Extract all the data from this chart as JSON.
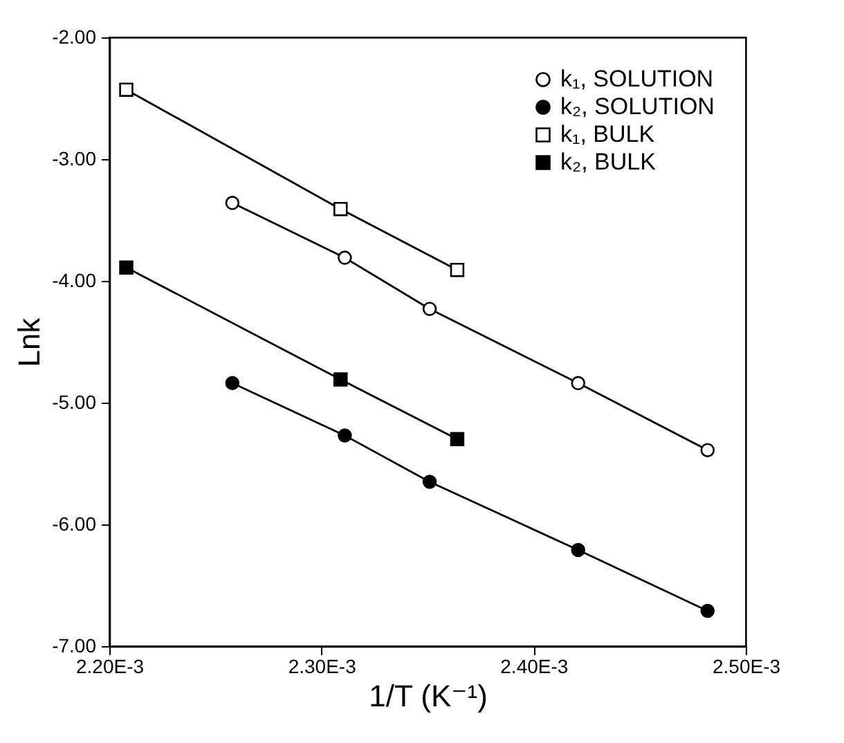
{
  "chart_data": {
    "type": "line",
    "xlabel": "1/T (K⁻¹)",
    "ylabel": "Lnk",
    "xlim": [
      0.0022,
      0.0025
    ],
    "ylim": [
      -7,
      -2
    ],
    "xticks": [
      {
        "value": 0.0022,
        "label": "2.20E-3"
      },
      {
        "value": 0.0023,
        "label": "2.30E-3"
      },
      {
        "value": 0.0024,
        "label": "2.40E-3"
      },
      {
        "value": 0.0025,
        "label": "2.50E-3"
      }
    ],
    "yticks": [
      {
        "value": -7,
        "label": "-7.00"
      },
      {
        "value": -6,
        "label": "-6.00"
      },
      {
        "value": -5,
        "label": "-5.00"
      },
      {
        "value": -4,
        "label": "-4.00"
      },
      {
        "value": -3,
        "label": "-3.00"
      },
      {
        "value": -2,
        "label": "-2.00"
      }
    ],
    "grid": false,
    "legend": "top right",
    "line_style": "solid",
    "series": [
      {
        "name": "k₁, SOLUTION",
        "color": "#000000",
        "marker": "circle-open",
        "x": [
          0.002258,
          0.002311,
          0.002351,
          0.002421,
          0.002482
        ],
        "values": [
          -3.36,
          -3.81,
          -4.23,
          -4.84,
          -5.39
        ]
      },
      {
        "name": "k₂, SOLUTION",
        "color": "#000000",
        "marker": "circle",
        "x": [
          0.002258,
          0.002311,
          0.002351,
          0.002421,
          0.002482
        ],
        "values": [
          -4.84,
          -5.27,
          -5.65,
          -6.21,
          -6.71
        ]
      },
      {
        "name": "k₁, BULK",
        "color": "#000000",
        "marker": "square-open",
        "x": [
          0.002208,
          0.002309,
          0.002364
        ],
        "values": [
          -2.43,
          -3.41,
          -3.91
        ]
      },
      {
        "name": "k₂, BULK",
        "color": "#000000",
        "marker": "square",
        "x": [
          0.002208,
          0.002309,
          0.002364
        ],
        "values": [
          -3.89,
          -4.81,
          -5.3
        ]
      }
    ]
  }
}
